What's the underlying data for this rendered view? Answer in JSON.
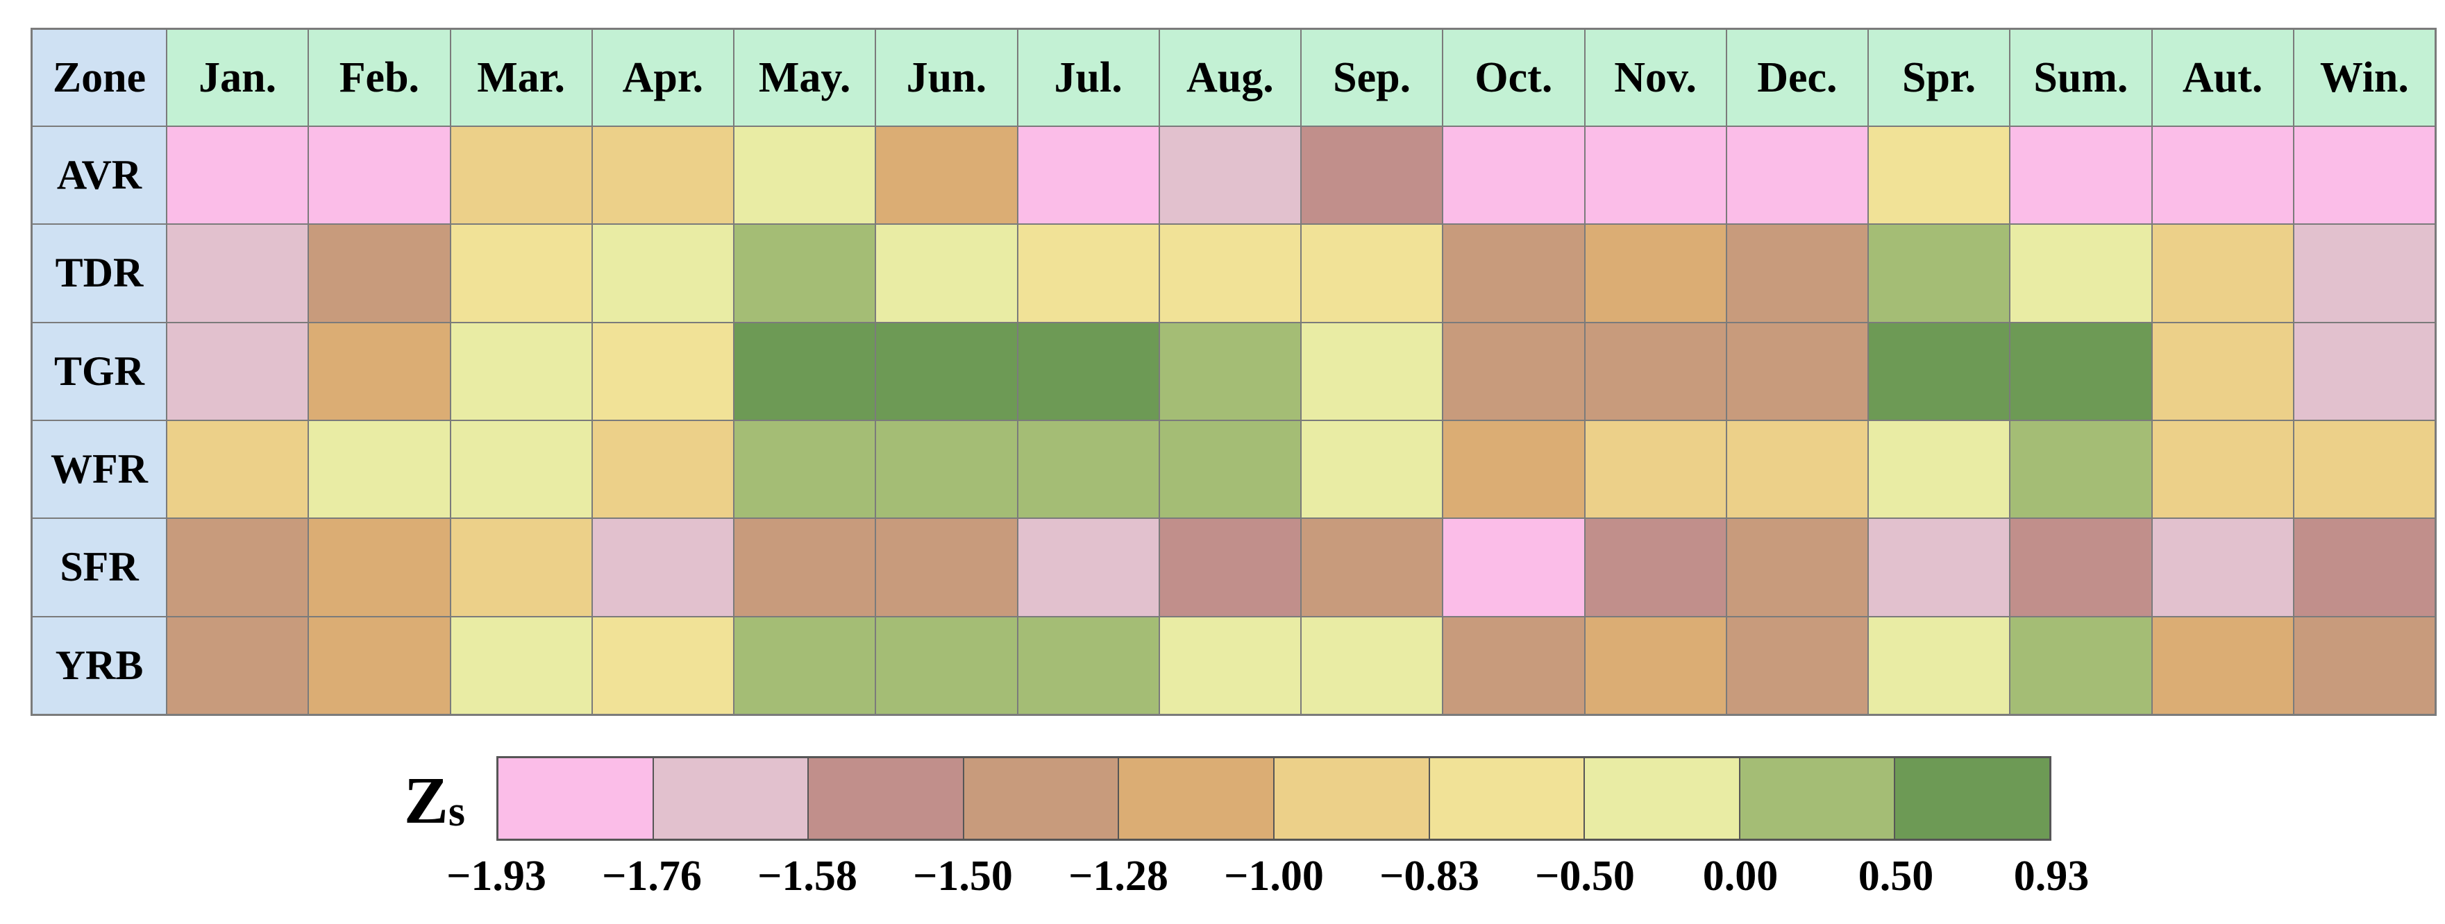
{
  "table": {
    "corner_header": "Zone",
    "column_headers": [
      "Jan.",
      "Feb.",
      "Mar.",
      "Apr.",
      "May.",
      "Jun.",
      "Jul.",
      "Aug.",
      "Sep.",
      "Oct.",
      "Nov.",
      "Dec.",
      "Spr.",
      "Sum.",
      "Aut.",
      "Win."
    ],
    "rows": [
      {
        "zone": "AVR",
        "cells": [
          1,
          1,
          6,
          6,
          8,
          5,
          1,
          2,
          3,
          1,
          1,
          1,
          7,
          1,
          1,
          1
        ]
      },
      {
        "zone": "TDR",
        "cells": [
          2,
          4,
          7,
          8,
          9,
          8,
          7,
          7,
          7,
          4,
          5,
          4,
          9,
          8,
          6,
          2
        ]
      },
      {
        "zone": "TGR",
        "cells": [
          2,
          5,
          8,
          7,
          10,
          10,
          10,
          9,
          8,
          4,
          4,
          4,
          10,
          10,
          6,
          2
        ]
      },
      {
        "zone": "WFR",
        "cells": [
          6,
          8,
          8,
          6,
          9,
          9,
          9,
          9,
          8,
          5,
          6,
          6,
          8,
          9,
          6,
          6
        ]
      },
      {
        "zone": "SFR",
        "cells": [
          4,
          5,
          6,
          2,
          4,
          4,
          2,
          3,
          4,
          1,
          3,
          4,
          2,
          3,
          2,
          3
        ]
      },
      {
        "zone": "YRB",
        "cells": [
          4,
          5,
          8,
          7,
          9,
          9,
          9,
          8,
          8,
          4,
          5,
          4,
          8,
          9,
          5,
          4
        ]
      }
    ]
  },
  "legend": {
    "label_main": "Z",
    "label_sub": "s",
    "tick_labels": [
      "−1.93",
      "−1.76",
      "−1.58",
      "−1.50",
      "−1.28",
      "−1.00",
      "−0.83",
      "−0.50",
      "0.00",
      "0.50",
      "0.93"
    ],
    "bin_colors": [
      "#fbbde8",
      "#e2c1ce",
      "#c18f8b",
      "#c89b7c",
      "#dbad74",
      "#ecd089",
      "#f1e297",
      "#e9eca4",
      "#a4bd75",
      "#6d9a55"
    ]
  },
  "colors": {
    "zone_header_bg": "#cfe1f3",
    "month_header_bg": "#c3f1d4",
    "table_border": "#7b7b7b",
    "legend_border": "#565656",
    "text": "#000000"
  },
  "chart_data": {
    "type": "heatmap",
    "title": "",
    "legend_title": "Zs",
    "rows": [
      "AVR",
      "TDR",
      "TGR",
      "WFR",
      "SFR",
      "YRB"
    ],
    "columns": [
      "Jan.",
      "Feb.",
      "Mar.",
      "Apr.",
      "May.",
      "Jun.",
      "Jul.",
      "Aug.",
      "Sep.",
      "Oct.",
      "Nov.",
      "Dec.",
      "Spr.",
      "Sum.",
      "Aut.",
      "Win."
    ],
    "bin_edges": [
      -1.93,
      -1.76,
      -1.58,
      -1.5,
      -1.28,
      -1.0,
      -0.83,
      -0.5,
      0.0,
      0.5,
      0.93
    ],
    "bin_colors": [
      "#fbbde8",
      "#e2c1ce",
      "#c18f8b",
      "#c89b7c",
      "#dbad74",
      "#ecd089",
      "#f1e297",
      "#e9eca4",
      "#a4bd75",
      "#6d9a55"
    ],
    "cell_bins": [
      [
        1,
        1,
        6,
        6,
        8,
        5,
        1,
        2,
        3,
        1,
        1,
        1,
        7,
        1,
        1,
        1
      ],
      [
        2,
        4,
        7,
        8,
        9,
        8,
        7,
        7,
        7,
        4,
        5,
        4,
        9,
        8,
        6,
        2
      ],
      [
        2,
        5,
        8,
        7,
        10,
        10,
        10,
        9,
        8,
        4,
        4,
        4,
        10,
        10,
        6,
        2
      ],
      [
        6,
        8,
        8,
        6,
        9,
        9,
        9,
        9,
        8,
        5,
        6,
        6,
        8,
        9,
        6,
        6
      ],
      [
        4,
        5,
        6,
        2,
        4,
        4,
        2,
        3,
        4,
        1,
        3,
        4,
        2,
        3,
        2,
        3
      ],
      [
        4,
        5,
        8,
        7,
        9,
        9,
        9,
        8,
        8,
        4,
        5,
        4,
        8,
        9,
        5,
        4
      ]
    ],
    "legend_position": "bottom",
    "grid": true
  }
}
